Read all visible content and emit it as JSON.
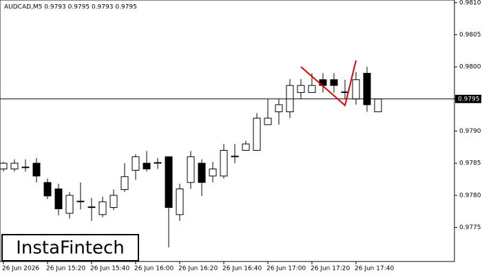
{
  "chart_data": {
    "type": "candlestick",
    "title": "AUDCAD,M5  0.9793 0.9795 0.9793 0.9795",
    "watermark": "InstaFintech",
    "categories": [
      "26 Jun 2026",
      null,
      null,
      null,
      "26 Jun 15:20",
      null,
      null,
      null,
      "26 Jun 15:40",
      null,
      null,
      null,
      "26 Jun 16:00",
      null,
      null,
      null,
      "26 Jun 16:20",
      null,
      null,
      null,
      "26 Jun 16:40",
      null,
      null,
      null,
      "26 Jun 17:00",
      null,
      null,
      null,
      "26 Jun 17:20",
      null,
      null,
      null,
      "26 Jun 17:40",
      null,
      null
    ],
    "open": [
      0.97841,
      0.97841,
      0.97843,
      0.9785,
      0.9782,
      0.9781,
      0.97772,
      0.9779,
      0.97781,
      0.9777,
      0.97781,
      0.97809,
      0.97839,
      0.9785,
      0.9785,
      0.9786,
      0.9777,
      0.9782,
      0.9785,
      0.9783,
      0.9783,
      0.9786,
      0.9787,
      0.9787,
      0.9791,
      0.9793,
      0.9793,
      0.9796,
      0.9796,
      0.9798,
      0.9798,
      0.9796,
      0.9795,
      0.9799,
      0.9793
    ],
    "high": [
      0.97852,
      0.97856,
      0.97856,
      0.97858,
      0.97826,
      0.97818,
      0.97805,
      0.9782,
      0.97796,
      0.97798,
      0.97809,
      0.9785,
      0.97864,
      0.97869,
      0.97858,
      0.9786,
      0.97818,
      0.97869,
      0.97856,
      0.97852,
      0.9788,
      0.9788,
      0.97885,
      0.97928,
      0.9795,
      0.9795,
      0.97981,
      0.97981,
      0.9799,
      0.9799,
      0.9799,
      0.9798,
      0.97992,
      0.98,
      0.9795
    ],
    "low": [
      0.97837,
      0.97837,
      0.97837,
      0.9782,
      0.97794,
      0.97769,
      0.97764,
      0.97778,
      0.9776,
      0.97766,
      0.97777,
      0.97805,
      0.97824,
      0.97837,
      0.97841,
      0.97719,
      0.9776,
      0.9781,
      0.97799,
      0.9782,
      0.97826,
      0.9785,
      0.9787,
      0.9787,
      0.9791,
      0.9791,
      0.9792,
      0.9795,
      0.9796,
      0.9796,
      0.9796,
      0.9795,
      0.97941,
      0.9793,
      0.9793
    ],
    "close": [
      0.9785,
      0.9785,
      0.97844,
      0.9783,
      0.97799,
      0.97779,
      0.978,
      0.97791,
      0.97782,
      0.9779,
      0.978,
      0.97829,
      0.9786,
      0.97841,
      0.97851,
      0.97781,
      0.9781,
      0.9786,
      0.9782,
      0.97841,
      0.9787,
      0.97861,
      0.9788,
      0.9792,
      0.9792,
      0.97941,
      0.97971,
      0.97971,
      0.97971,
      0.97971,
      0.97971,
      0.97961,
      0.9798,
      0.97941,
      0.9795
    ],
    "up_color": "#ffffff",
    "down_color": "#000000",
    "current_price": 0.9795,
    "pattern_line": {
      "color": "#e00000",
      "x": [
        27,
        31,
        32
      ],
      "y": [
        0.98,
        0.9794,
        0.9801
      ]
    },
    "ylim": [
      0.97697,
      0.98104
    ],
    "yticks": [
      0.9775,
      {
        "value": 0.978,
        "label": "0.9780"
      },
      0.9785,
      {
        "value": 0.979,
        "label": "0.9790"
      },
      0.9795,
      {
        "value": 0.98,
        "label": "0.9800"
      },
      0.9805,
      {
        "value": 0.981,
        "label": "0.9810"
      }
    ]
  }
}
